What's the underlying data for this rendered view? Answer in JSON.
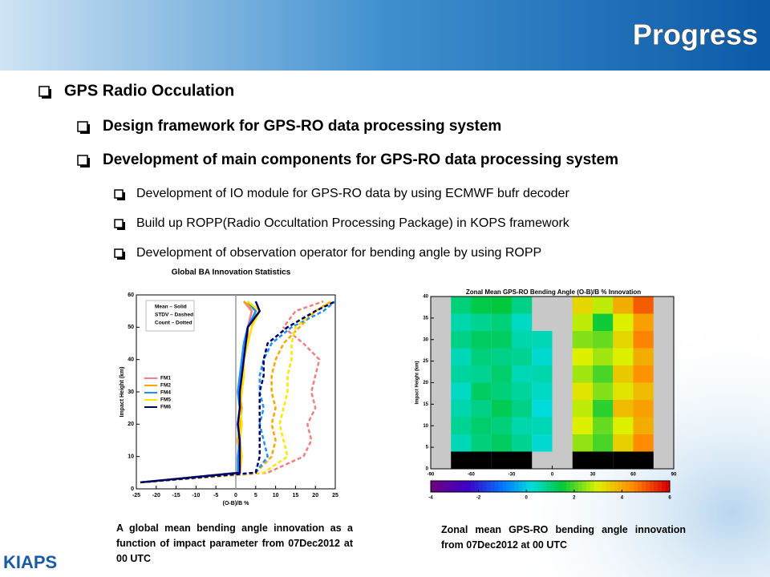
{
  "header": {
    "title": "Progress"
  },
  "section": {
    "title": "GPS Radio Occulation",
    "items": [
      {
        "text": "Design framework for GPS-RO data processing system",
        "items": []
      },
      {
        "text": "Development of main components for GPS-RO data processing system",
        "items": [
          "Development of IO module for GPS-RO data by using ECMWF bufr decoder",
          "Build up ROPP(Radio Occultation Processing Package) in KOPS framework",
          "Development of observation operator for bending angle by using ROPP"
        ]
      }
    ]
  },
  "chart_data": [
    {
      "type": "line",
      "title": "Global BA Innovation Statistics",
      "x_label": "(O-B)/B %",
      "y_label": "Impact Height (km)",
      "annotations": [
        "Mean – Solid",
        "STDV – Dashed",
        "Count – Dotted"
      ],
      "xlim": [
        -25,
        25
      ],
      "xticks": [
        -25,
        -20,
        -15,
        -10,
        -5,
        0,
        5,
        10,
        15,
        20,
        25
      ],
      "ylim": [
        0,
        60
      ],
      "yticks": [
        0,
        10,
        20,
        30,
        40,
        50,
        60
      ],
      "y": [
        2,
        5,
        10,
        15,
        20,
        25,
        30,
        35,
        40,
        45,
        50,
        55,
        58
      ],
      "series": [
        {
          "name": "FM1",
          "color": "#f08080",
          "values": [
            -24,
            1,
            1.5,
            1,
            1.5,
            1,
            1.5,
            2,
            2,
            3,
            3,
            4,
            2
          ],
          "stdv": [
            -24,
            8,
            17,
            19,
            18,
            20,
            19,
            20,
            21,
            17,
            12,
            15,
            22
          ]
        },
        {
          "name": "FM2",
          "color": "#ffa500",
          "values": [
            -24,
            0.5,
            1,
            0.5,
            1,
            1.5,
            1,
            1.5,
            2,
            3,
            4,
            5,
            2
          ],
          "stdv": [
            -24,
            5,
            9,
            10,
            9,
            10,
            9,
            9,
            10,
            12,
            16,
            20,
            24
          ]
        },
        {
          "name": "FM4",
          "color": "#1e90ff",
          "values": [
            -24,
            0.5,
            0.5,
            1,
            0.5,
            1,
            0.5,
            1,
            1.5,
            2,
            3,
            5,
            3
          ],
          "stdv": [
            -24,
            5,
            8,
            7,
            6,
            7,
            6,
            6,
            7,
            9,
            14,
            22,
            25
          ]
        },
        {
          "name": "FM5",
          "color": "#ffe600",
          "values": [
            -24,
            1,
            1.5,
            1,
            1.5,
            1,
            1.5,
            2,
            2,
            3,
            4,
            6,
            3
          ],
          "stdv": [
            -24,
            7,
            13,
            12,
            11,
            12,
            13,
            13,
            14,
            14,
            15,
            20,
            24
          ]
        },
        {
          "name": "FM6",
          "color": "#000066",
          "values": [
            -24,
            1,
            1,
            1,
            0.5,
            1,
            1,
            1.5,
            2,
            2.5,
            3,
            6,
            5
          ],
          "stdv": [
            -24,
            5,
            6,
            6,
            6,
            6,
            6,
            7,
            7,
            8,
            13,
            20,
            25
          ]
        }
      ]
    },
    {
      "type": "heatmap",
      "title": "Zonal Mean GPS-RO Bending Angle (O-B)/B % Innovation",
      "y_label": "Impact Height (km)",
      "xlim": [
        -90,
        90
      ],
      "xticks": [
        -90,
        -60,
        -30,
        0,
        30,
        60,
        90
      ],
      "ylim": [
        0,
        40
      ],
      "yticks": [
        0,
        5,
        10,
        15,
        20,
        25,
        30,
        35,
        40
      ],
      "xbins": [
        -90,
        -75,
        -60,
        -45,
        -30,
        -15,
        0,
        15,
        30,
        45,
        60,
        75,
        90
      ],
      "ybins": [
        0,
        4,
        8,
        12,
        16,
        20,
        24,
        28,
        32,
        36,
        40
      ],
      "clim": [
        -4,
        6
      ],
      "cticks": [
        -4,
        -2,
        0,
        2,
        4,
        6
      ],
      "z": [
        [
          null,
          8,
          8,
          8,
          8,
          null,
          null,
          8,
          8,
          8,
          8,
          null
        ],
        [
          null,
          0.5,
          1,
          1.2,
          0.8,
          0.3,
          null,
          2.5,
          2,
          3.5,
          4.5,
          null
        ],
        [
          null,
          0.8,
          1.1,
          1,
          0.6,
          0.5,
          null,
          3,
          2.2,
          3,
          4,
          null
        ],
        [
          null,
          0.6,
          0.9,
          1.3,
          0.9,
          0.2,
          null,
          2.8,
          1.8,
          3.8,
          4.2,
          null
        ],
        [
          null,
          0.4,
          1.2,
          1,
          0.7,
          0.4,
          null,
          3.2,
          2.4,
          3.2,
          3.8,
          null
        ],
        [
          null,
          0.7,
          0.8,
          1.1,
          0.5,
          0.6,
          null,
          2.6,
          2,
          3.6,
          4.4,
          null
        ],
        [
          null,
          0.5,
          1,
          0.9,
          0.8,
          0.3,
          null,
          3,
          2.6,
          3,
          4,
          null
        ],
        [
          null,
          0.9,
          1.2,
          1.2,
          0.6,
          0.5,
          null,
          2.4,
          2.2,
          3.4,
          4.6,
          null
        ],
        [
          null,
          0.6,
          0.8,
          1,
          0.4,
          null,
          null,
          2.8,
          1.6,
          3,
          4.2,
          null
        ],
        [
          null,
          1,
          1.4,
          1.5,
          0.9,
          null,
          null,
          3.4,
          2.8,
          4,
          5,
          null
        ]
      ]
    }
  ],
  "captions": [
    "A global mean bending angle innovation as a function of impact parameter from 07Dec2012 at 00 UTC",
    "Zonal mean GPS-RO bending angle innovation from 07Dec2012 at 00 UTC"
  ],
  "footer": {
    "logo": "KIAPS"
  }
}
